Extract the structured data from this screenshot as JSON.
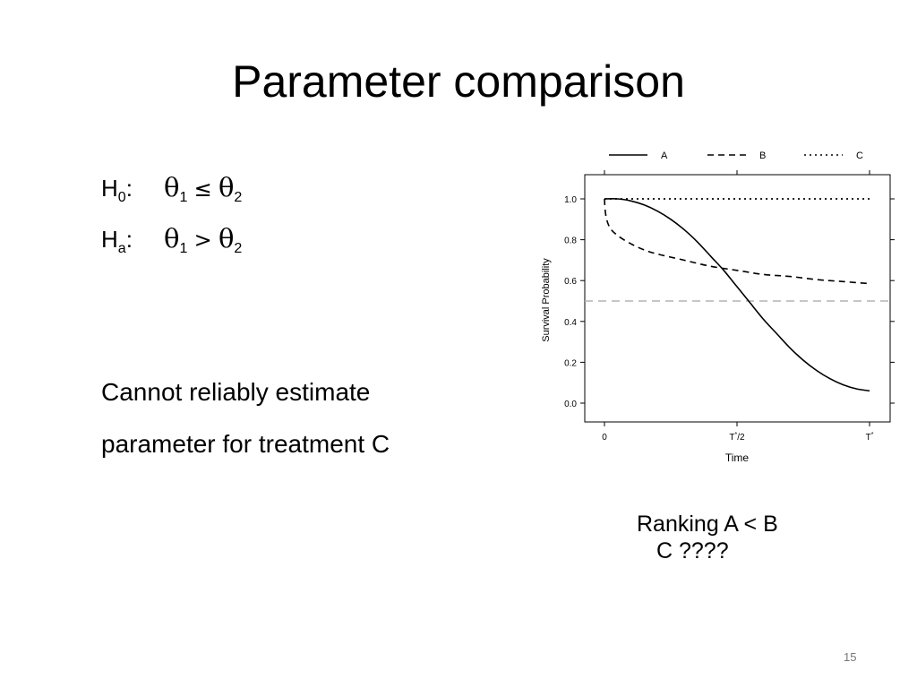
{
  "slide": {
    "title": "Parameter comparison",
    "h0_label": "H",
    "h0_sub": "0",
    "h0_colon": ":",
    "theta": "θ",
    "theta_sub1": "1",
    "theta_sub2": "2",
    "h0_relation": "≤",
    "ha_label": "H",
    "ha_sub": "a",
    "ha_colon": ":",
    "ha_relation": ">",
    "body_line1": "Cannot reliably estimate",
    "body_line2": "parameter for treatment C",
    "ranking_line1": "Ranking A < B",
    "ranking_line2": "C ????",
    "page_number": "15"
  },
  "chart_data": {
    "type": "line",
    "xlabel": "Time",
    "ylabel": "Survival Probability",
    "xlim": [
      0,
      1
    ],
    "ylim": [
      0,
      1
    ],
    "x_ticks": [
      {
        "value": 0,
        "label": "0",
        "sup": ""
      },
      {
        "value": 0.5,
        "label": "T/2",
        "sup": "*"
      },
      {
        "value": 1,
        "label": "T",
        "sup": "*"
      }
    ],
    "y_ticks": [
      "0.0",
      "0.2",
      "0.4",
      "0.6",
      "0.8",
      "1.0"
    ],
    "reference_line": {
      "y": 0.5,
      "color": "#b3b3b3"
    },
    "legend_position": "top",
    "series": [
      {
        "name": "A",
        "style": "solid",
        "color": "#000000",
        "x": [
          0,
          0.05,
          0.1,
          0.15,
          0.2,
          0.25,
          0.3,
          0.35,
          0.4,
          0.45,
          0.5,
          0.55,
          0.6,
          0.65,
          0.7,
          0.75,
          0.8,
          0.85,
          0.9,
          0.95,
          1.0
        ],
        "y": [
          1.0,
          1.0,
          0.99,
          0.97,
          0.94,
          0.9,
          0.85,
          0.79,
          0.72,
          0.65,
          0.57,
          0.49,
          0.41,
          0.34,
          0.27,
          0.21,
          0.16,
          0.12,
          0.09,
          0.07,
          0.06
        ]
      },
      {
        "name": "B",
        "style": "dashed",
        "color": "#000000",
        "x": [
          0,
          0.005,
          0.02,
          0.05,
          0.1,
          0.15,
          0.2,
          0.3,
          0.4,
          0.5,
          0.6,
          0.7,
          0.8,
          0.9,
          1.0
        ],
        "y": [
          1.0,
          0.92,
          0.86,
          0.82,
          0.78,
          0.75,
          0.73,
          0.7,
          0.67,
          0.65,
          0.63,
          0.62,
          0.605,
          0.595,
          0.585
        ]
      },
      {
        "name": "C",
        "style": "dotted",
        "color": "#000000",
        "x": [
          0,
          1.0
        ],
        "y": [
          1.0,
          1.0
        ]
      }
    ]
  }
}
